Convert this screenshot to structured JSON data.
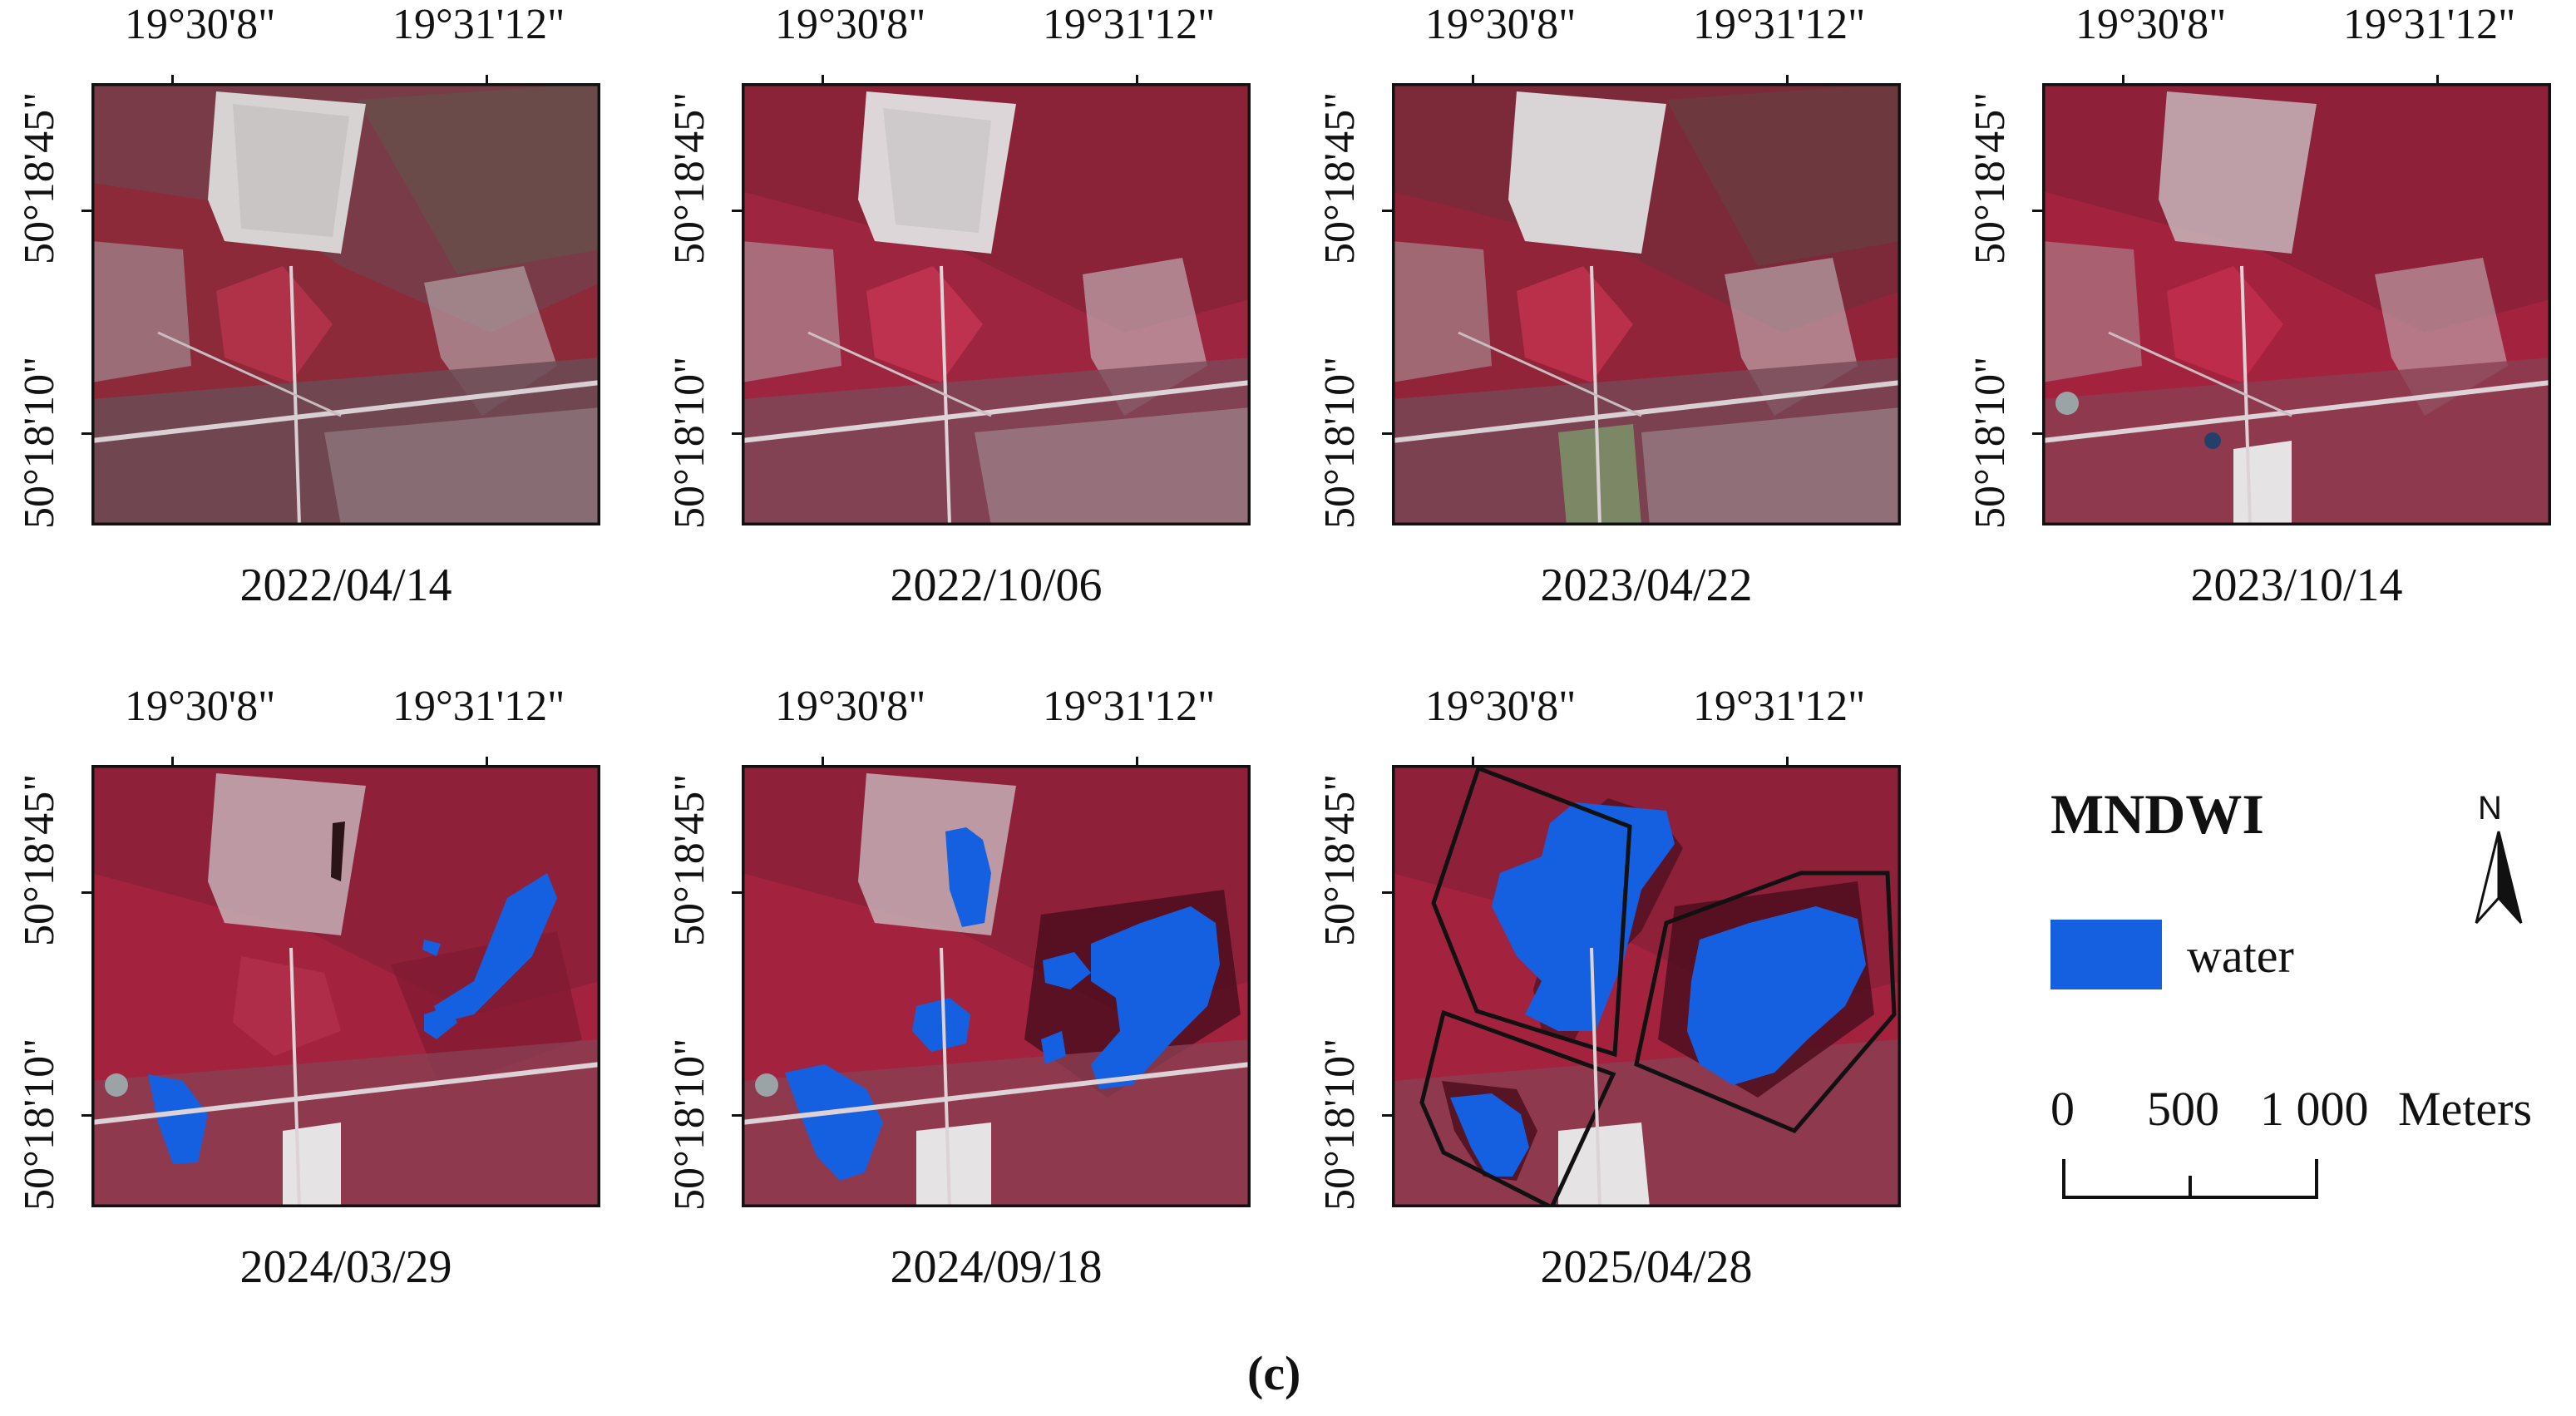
{
  "coords": {
    "lon_left": "19°30'8\"",
    "lon_right": "19°31'12\"",
    "lat_top": "50°18'45\"",
    "lat_bottom": "50°18'10\""
  },
  "panels": [
    {
      "date": "2022/04/14",
      "water": "none"
    },
    {
      "date": "2022/10/06",
      "water": "none"
    },
    {
      "date": "2023/04/22",
      "water": "none"
    },
    {
      "date": "2023/10/14",
      "water": "none"
    },
    {
      "date": "2024/03/29",
      "water": "initial"
    },
    {
      "date": "2024/09/18",
      "water": "expanded"
    },
    {
      "date": "2025/04/28",
      "water": "full"
    }
  ],
  "legend": {
    "title": "MNDWI",
    "water_label": "water",
    "water_color": "#1560e0",
    "north_label": "N"
  },
  "scale": {
    "labels": [
      "0",
      "500",
      "1 000"
    ],
    "unit": "Meters"
  },
  "caption": "(c)"
}
